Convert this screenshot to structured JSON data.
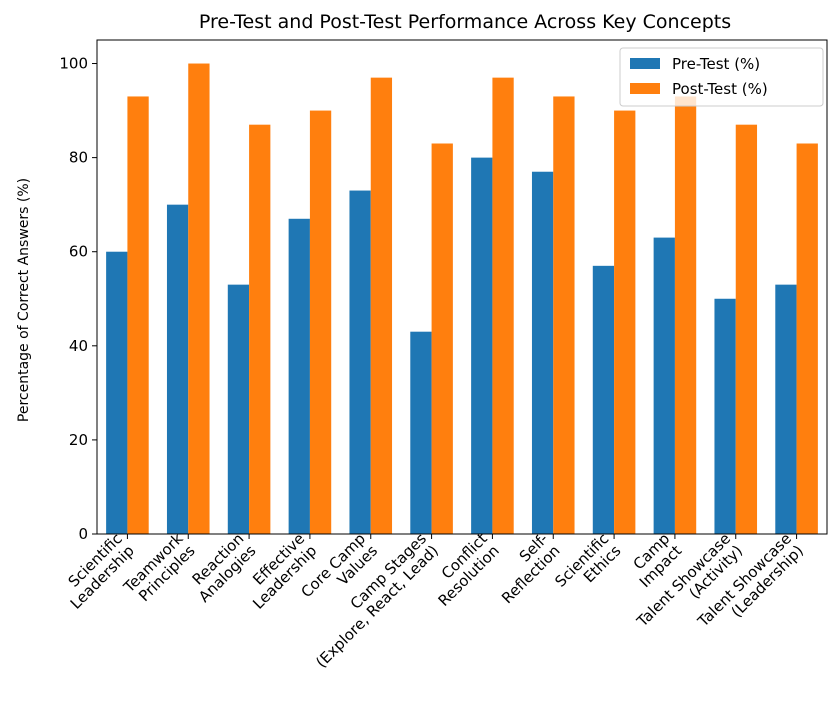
{
  "chart_data": {
    "type": "bar",
    "title": "Pre-Test and Post-Test Performance Across Key Concepts",
    "y_label": "Percentage of Correct Answers (%)",
    "categories": [
      "Scientific\nLeadership",
      "Teamwork\nPrinciples",
      "Reaction\nAnalogies",
      "Effective\nLeadership",
      "Core Camp\nValues",
      "Camp Stages\n(Explore, React, Lead)",
      "Conflict\nResolution",
      "Self-\nReflection",
      "Scientific\nEthics",
      "Camp\nImpact",
      "Talent Showcase\n(Activity)",
      "Talent Showcase\n(Leadership)"
    ],
    "series": [
      {
        "name": "Pre-Test (%)",
        "color": "#1f77b4",
        "values": [
          60,
          70,
          53,
          67,
          73,
          43,
          80,
          77,
          57,
          63,
          50,
          53
        ]
      },
      {
        "name": "Post-Test (%)",
        "color": "#ff7f0e",
        "values": [
          93,
          100,
          87,
          90,
          97,
          83,
          97,
          93,
          90,
          93,
          87,
          83
        ]
      }
    ],
    "ylim": [
      0,
      105
    ],
    "yticks": [
      0,
      20,
      40,
      60,
      80,
      100
    ],
    "grid": false,
    "legend": "upper right"
  }
}
